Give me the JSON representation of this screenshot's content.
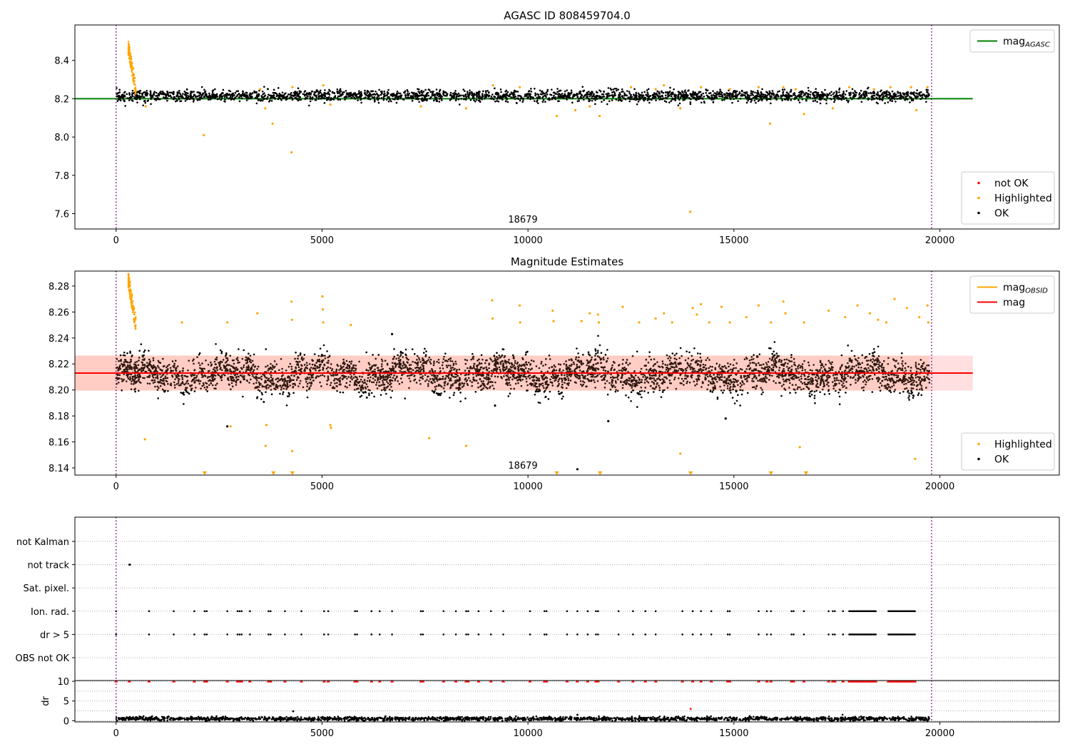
{
  "chart_data": [
    {
      "type": "scatter",
      "title": "AGASC ID 808459704.0",
      "xlabel": "",
      "ylabel": "",
      "xlim": [
        -1000,
        22900
      ],
      "ylim": [
        7.52,
        8.585
      ],
      "x_ticks": [
        0,
        5000,
        10000,
        15000,
        20000
      ],
      "y_ticks": [
        7.6,
        7.8,
        8.0,
        8.2,
        8.4
      ],
      "x_tick_labels": [
        "0",
        "5000",
        "10000",
        "15000",
        "20000"
      ],
      "y_tick_labels": [
        "7.6",
        "7.8",
        "8.0",
        "8.2",
        "8.4"
      ],
      "annotation": "18679",
      "grid": false,
      "vlines": [
        0,
        19800
      ],
      "series": [
        {
          "name": "mag_AGASC",
          "kind": "line",
          "color": "#008000",
          "x": [
            -1000,
            20800
          ],
          "y": [
            8.2,
            8.2
          ]
        },
        {
          "name": "not OK",
          "kind": "points",
          "color": "#ff0000",
          "x": [],
          "y": []
        },
        {
          "name": "Highlighted",
          "kind": "points",
          "color": "#ffa500",
          "band": {
            "x_start": 300,
            "x_end": 480,
            "y_top": 8.5,
            "y_bottom": 8.26
          },
          "x": [
            720,
            2130,
            3500,
            3620,
            3800,
            4260,
            4280,
            5030,
            5200,
            7400,
            8500,
            9150,
            9800,
            10700,
            11150,
            11500,
            11740,
            12500,
            13100,
            13300,
            13700,
            13940,
            14200,
            14900,
            15600,
            15880,
            16200,
            16500,
            16700,
            17400,
            17800,
            18400,
            18800,
            19300,
            19430,
            19700
          ],
          "y": [
            8.16,
            8.01,
            8.25,
            8.15,
            8.07,
            7.92,
            8.26,
            8.27,
            8.17,
            8.16,
            8.15,
            8.27,
            8.26,
            8.11,
            8.14,
            8.16,
            8.11,
            8.26,
            8.25,
            8.27,
            8.15,
            7.61,
            8.26,
            8.25,
            8.26,
            8.07,
            8.26,
            8.25,
            8.12,
            8.15,
            8.26,
            8.25,
            8.26,
            8.26,
            8.14,
            8.26
          ]
        },
        {
          "name": "OK",
          "kind": "points",
          "color": "#000000",
          "cloud": {
            "x_start": 0,
            "x_end": 19750,
            "y_center": 8.215,
            "y_spread": 0.03,
            "count": 2600
          }
        }
      ],
      "legends": [
        {
          "position": "upper-right",
          "entries": [
            {
              "label": "mag",
              "sub": "AGASC",
              "color": "#008000",
              "kind": "line"
            }
          ]
        },
        {
          "position": "lower-right",
          "entries": [
            {
              "label": "not OK",
              "color": "#ff0000",
              "kind": "dot"
            },
            {
              "label": "Highlighted",
              "color": "#ffa500",
              "kind": "dot"
            },
            {
              "label": "OK",
              "color": "#000000",
              "kind": "dot"
            }
          ]
        }
      ]
    },
    {
      "type": "scatter",
      "title": "Magnitude Estimates",
      "xlabel": "",
      "ylabel": "",
      "xlim": [
        -1000,
        22900
      ],
      "ylim": [
        8.1345,
        8.2915
      ],
      "x_ticks": [
        0,
        5000,
        10000,
        15000,
        20000
      ],
      "y_ticks": [
        8.14,
        8.16,
        8.18,
        8.2,
        8.22,
        8.24,
        8.26,
        8.28
      ],
      "x_tick_labels": [
        "0",
        "5000",
        "10000",
        "15000",
        "20000"
      ],
      "y_tick_labels": [
        "8.14",
        "8.16",
        "8.18",
        "8.20",
        "8.22",
        "8.24",
        "8.26",
        "8.28"
      ],
      "annotation": "18679",
      "grid": false,
      "vlines": [
        0,
        19800
      ],
      "mag_line": {
        "value": 8.213,
        "color": "#ff0000",
        "x": [
          -1000,
          20800
        ]
      },
      "mag_band": {
        "low": 8.1995,
        "high": 8.2265,
        "color": "#ffb0b0"
      },
      "series": [
        {
          "name": "mag_OBSID",
          "kind": "line",
          "color": "#ffa500",
          "x": [],
          "y": []
        },
        {
          "name": "Highlighted",
          "kind": "points",
          "color": "#ffa500",
          "band": {
            "x_start": 300,
            "x_end": 480,
            "y_top": 8.29,
            "y_bottom": 8.252
          },
          "x": [
            700,
            1600,
            2700,
            2780,
            3430,
            3630,
            3650,
            4260,
            4270,
            4275,
            5010,
            5020,
            5030,
            5200,
            5220,
            5700,
            7600,
            8500,
            9130,
            9140,
            9800,
            9810,
            10600,
            10620,
            11300,
            11500,
            11700,
            11720,
            12300,
            12700,
            13100,
            13300,
            13500,
            13700,
            14000,
            14100,
            14200,
            14400,
            14700,
            14900,
            15300,
            15600,
            15900,
            16200,
            16250,
            16600,
            16700,
            17300,
            17700,
            18000,
            18300,
            18500,
            18700,
            18900,
            19200,
            19400,
            19500,
            19700,
            19720
          ],
          "y": [
            8.162,
            8.252,
            8.252,
            8.172,
            8.259,
            8.157,
            8.173,
            8.268,
            8.254,
            8.153,
            8.272,
            8.262,
            8.252,
            8.173,
            8.171,
            8.25,
            8.163,
            8.157,
            8.269,
            8.255,
            8.265,
            8.252,
            8.261,
            8.253,
            8.253,
            8.259,
            8.258,
            8.252,
            8.264,
            8.252,
            8.255,
            8.259,
            8.252,
            8.151,
            8.263,
            8.258,
            8.266,
            8.252,
            8.264,
            8.252,
            8.256,
            8.265,
            8.252,
            8.268,
            8.259,
            8.156,
            8.252,
            8.261,
            8.256,
            8.265,
            8.259,
            8.254,
            8.252,
            8.27,
            8.263,
            8.147,
            8.256,
            8.265,
            8.252
          ]
        },
        {
          "name": "Highlighted (out of range)",
          "kind": "triangles",
          "color": "#ffa500",
          "x": [
            2150,
            3820,
            4280,
            10700,
            11750,
            13950,
            15900,
            16750
          ],
          "y": [
            8.1345,
            8.1345,
            8.1345,
            8.1345,
            8.1345,
            8.1345,
            8.1345,
            8.1345
          ]
        },
        {
          "name": "OK",
          "kind": "points",
          "color": "#000000",
          "cloud": {
            "x_start": 0,
            "x_end": 19750,
            "y_center": 8.212,
            "y_spread": 0.013,
            "count": 4200
          },
          "x": [
            2700,
            11200,
            11950,
            14800,
            9200,
            6700
          ],
          "y": [
            8.172,
            8.139,
            8.176,
            8.178,
            8.188,
            8.243
          ]
        }
      ],
      "legends": [
        {
          "position": "upper-right",
          "entries": [
            {
              "label": "mag",
              "sub": "OBSID",
              "color": "#ffa500",
              "kind": "line"
            },
            {
              "label": "mag",
              "sub": "",
              "color": "#ff0000",
              "kind": "line"
            }
          ]
        },
        {
          "position": "lower-right",
          "entries": [
            {
              "label": "Highlighted",
              "color": "#ffa500",
              "kind": "dot"
            },
            {
              "label": "OK",
              "color": "#000000",
              "kind": "dot"
            }
          ]
        }
      ]
    },
    {
      "type": "scatter",
      "title": "",
      "xlabel": "",
      "ylabel": "",
      "xlim": [
        -1000,
        22900
      ],
      "categories": [
        "not Kalman",
        "not track",
        "Sat. pixel.",
        "Ion. rad.",
        "dr > 5",
        "OBS not OK"
      ],
      "grid": true,
      "vlines": [
        0,
        19800
      ],
      "series": [
        {
          "name": "not track",
          "kind": "points",
          "color": "#000000",
          "x": [
            320,
            340
          ],
          "y": [
            "not track",
            "not track"
          ]
        },
        {
          "name": "Ion. rad.",
          "kind": "points",
          "color": "#000000",
          "x": [
            0,
            800,
            1400,
            1900,
            2150,
            2200,
            2700,
            2950,
            3000,
            3050,
            3250,
            3700,
            3750,
            4100,
            4500,
            5050,
            5150,
            5800,
            5850,
            6200,
            6400,
            6700,
            7400,
            7450,
            7950,
            8250,
            8500,
            8550,
            8800,
            9100,
            9400,
            10050,
            10400,
            10450,
            10950,
            11200,
            11450,
            11650,
            11700,
            12200,
            12550,
            12850,
            13100,
            13750,
            14000,
            14200,
            14450,
            14850,
            14900,
            15600,
            15800,
            15900,
            16400,
            16450,
            16700,
            17300,
            17400,
            17450,
            17650
          ],
          "y_category": "Ion. rad.",
          "segment": {
            "x_start": 17800,
            "x_end": 18450,
            "gap_end": 18750,
            "x_end2": 19400
          }
        },
        {
          "name": "dr > 5",
          "kind": "points",
          "color": "#000000",
          "x": [
            0,
            800,
            1400,
            1900,
            2150,
            2200,
            2700,
            2950,
            3000,
            3050,
            3250,
            3700,
            3750,
            4100,
            4500,
            5050,
            5150,
            5800,
            5850,
            6200,
            6400,
            6700,
            7400,
            7450,
            7950,
            8250,
            8500,
            8550,
            8800,
            9100,
            9400,
            10050,
            10400,
            10450,
            10950,
            11200,
            11450,
            11650,
            11700,
            12200,
            12550,
            12850,
            13100,
            13750,
            14000,
            14200,
            14450,
            14850,
            14900,
            15600,
            15800,
            15900,
            16400,
            16450,
            16700,
            17300,
            17400,
            17450,
            17650
          ],
          "y_category": "dr > 5",
          "segment": {
            "x_start": 17800,
            "x_end": 18450,
            "gap_end": 18750,
            "x_end2": 19400
          }
        }
      ]
    },
    {
      "type": "scatter",
      "title": "",
      "xlabel": "",
      "ylabel": "dr",
      "xlim": [
        -1000,
        22900
      ],
      "ylim": [
        -0.3,
        10.2
      ],
      "x_ticks": [
        0,
        5000,
        10000,
        15000,
        20000
      ],
      "y_ticks": [
        0,
        5,
        10
      ],
      "x_tick_labels": [
        "0",
        "5000",
        "10000",
        "15000",
        "20000"
      ],
      "y_tick_labels": [
        "0",
        "5",
        "10"
      ],
      "grid": true,
      "vlines": [
        0,
        19800
      ],
      "series": [
        {
          "name": "dr capped",
          "kind": "triangles",
          "color": "#ff0000",
          "x": [
            0,
            320,
            800,
            1400,
            1900,
            2150,
            2200,
            2700,
            2950,
            3000,
            3050,
            3250,
            3700,
            3750,
            4100,
            4500,
            5050,
            5150,
            5800,
            5850,
            6200,
            6400,
            6700,
            7400,
            7450,
            7950,
            8250,
            8500,
            8550,
            8800,
            9100,
            9400,
            10050,
            10400,
            10450,
            10950,
            11200,
            11450,
            11650,
            11700,
            12200,
            12550,
            12850,
            13100,
            13750,
            14000,
            14200,
            14450,
            14850,
            14900,
            15600,
            15800,
            15900,
            16400,
            16450,
            16700,
            17300,
            17400,
            17450,
            17650
          ],
          "y_value": 10,
          "segment": {
            "x_start": 17800,
            "x_end": 18450,
            "gap_end": 18750,
            "x_end2": 19400
          }
        },
        {
          "name": "dr",
          "kind": "points",
          "color": "#000000",
          "cloud": {
            "x_start": 0,
            "x_end": 19750,
            "y_center": 0.5,
            "y_spread": 0.4,
            "count": 2000
          },
          "x": [
            4300,
            11200
          ],
          "y": [
            2.4,
            1.5
          ]
        },
        {
          "name": "dr red",
          "kind": "points",
          "color": "#ff0000",
          "x": [
            13950
          ],
          "y": [
            3.0
          ]
        }
      ]
    }
  ]
}
